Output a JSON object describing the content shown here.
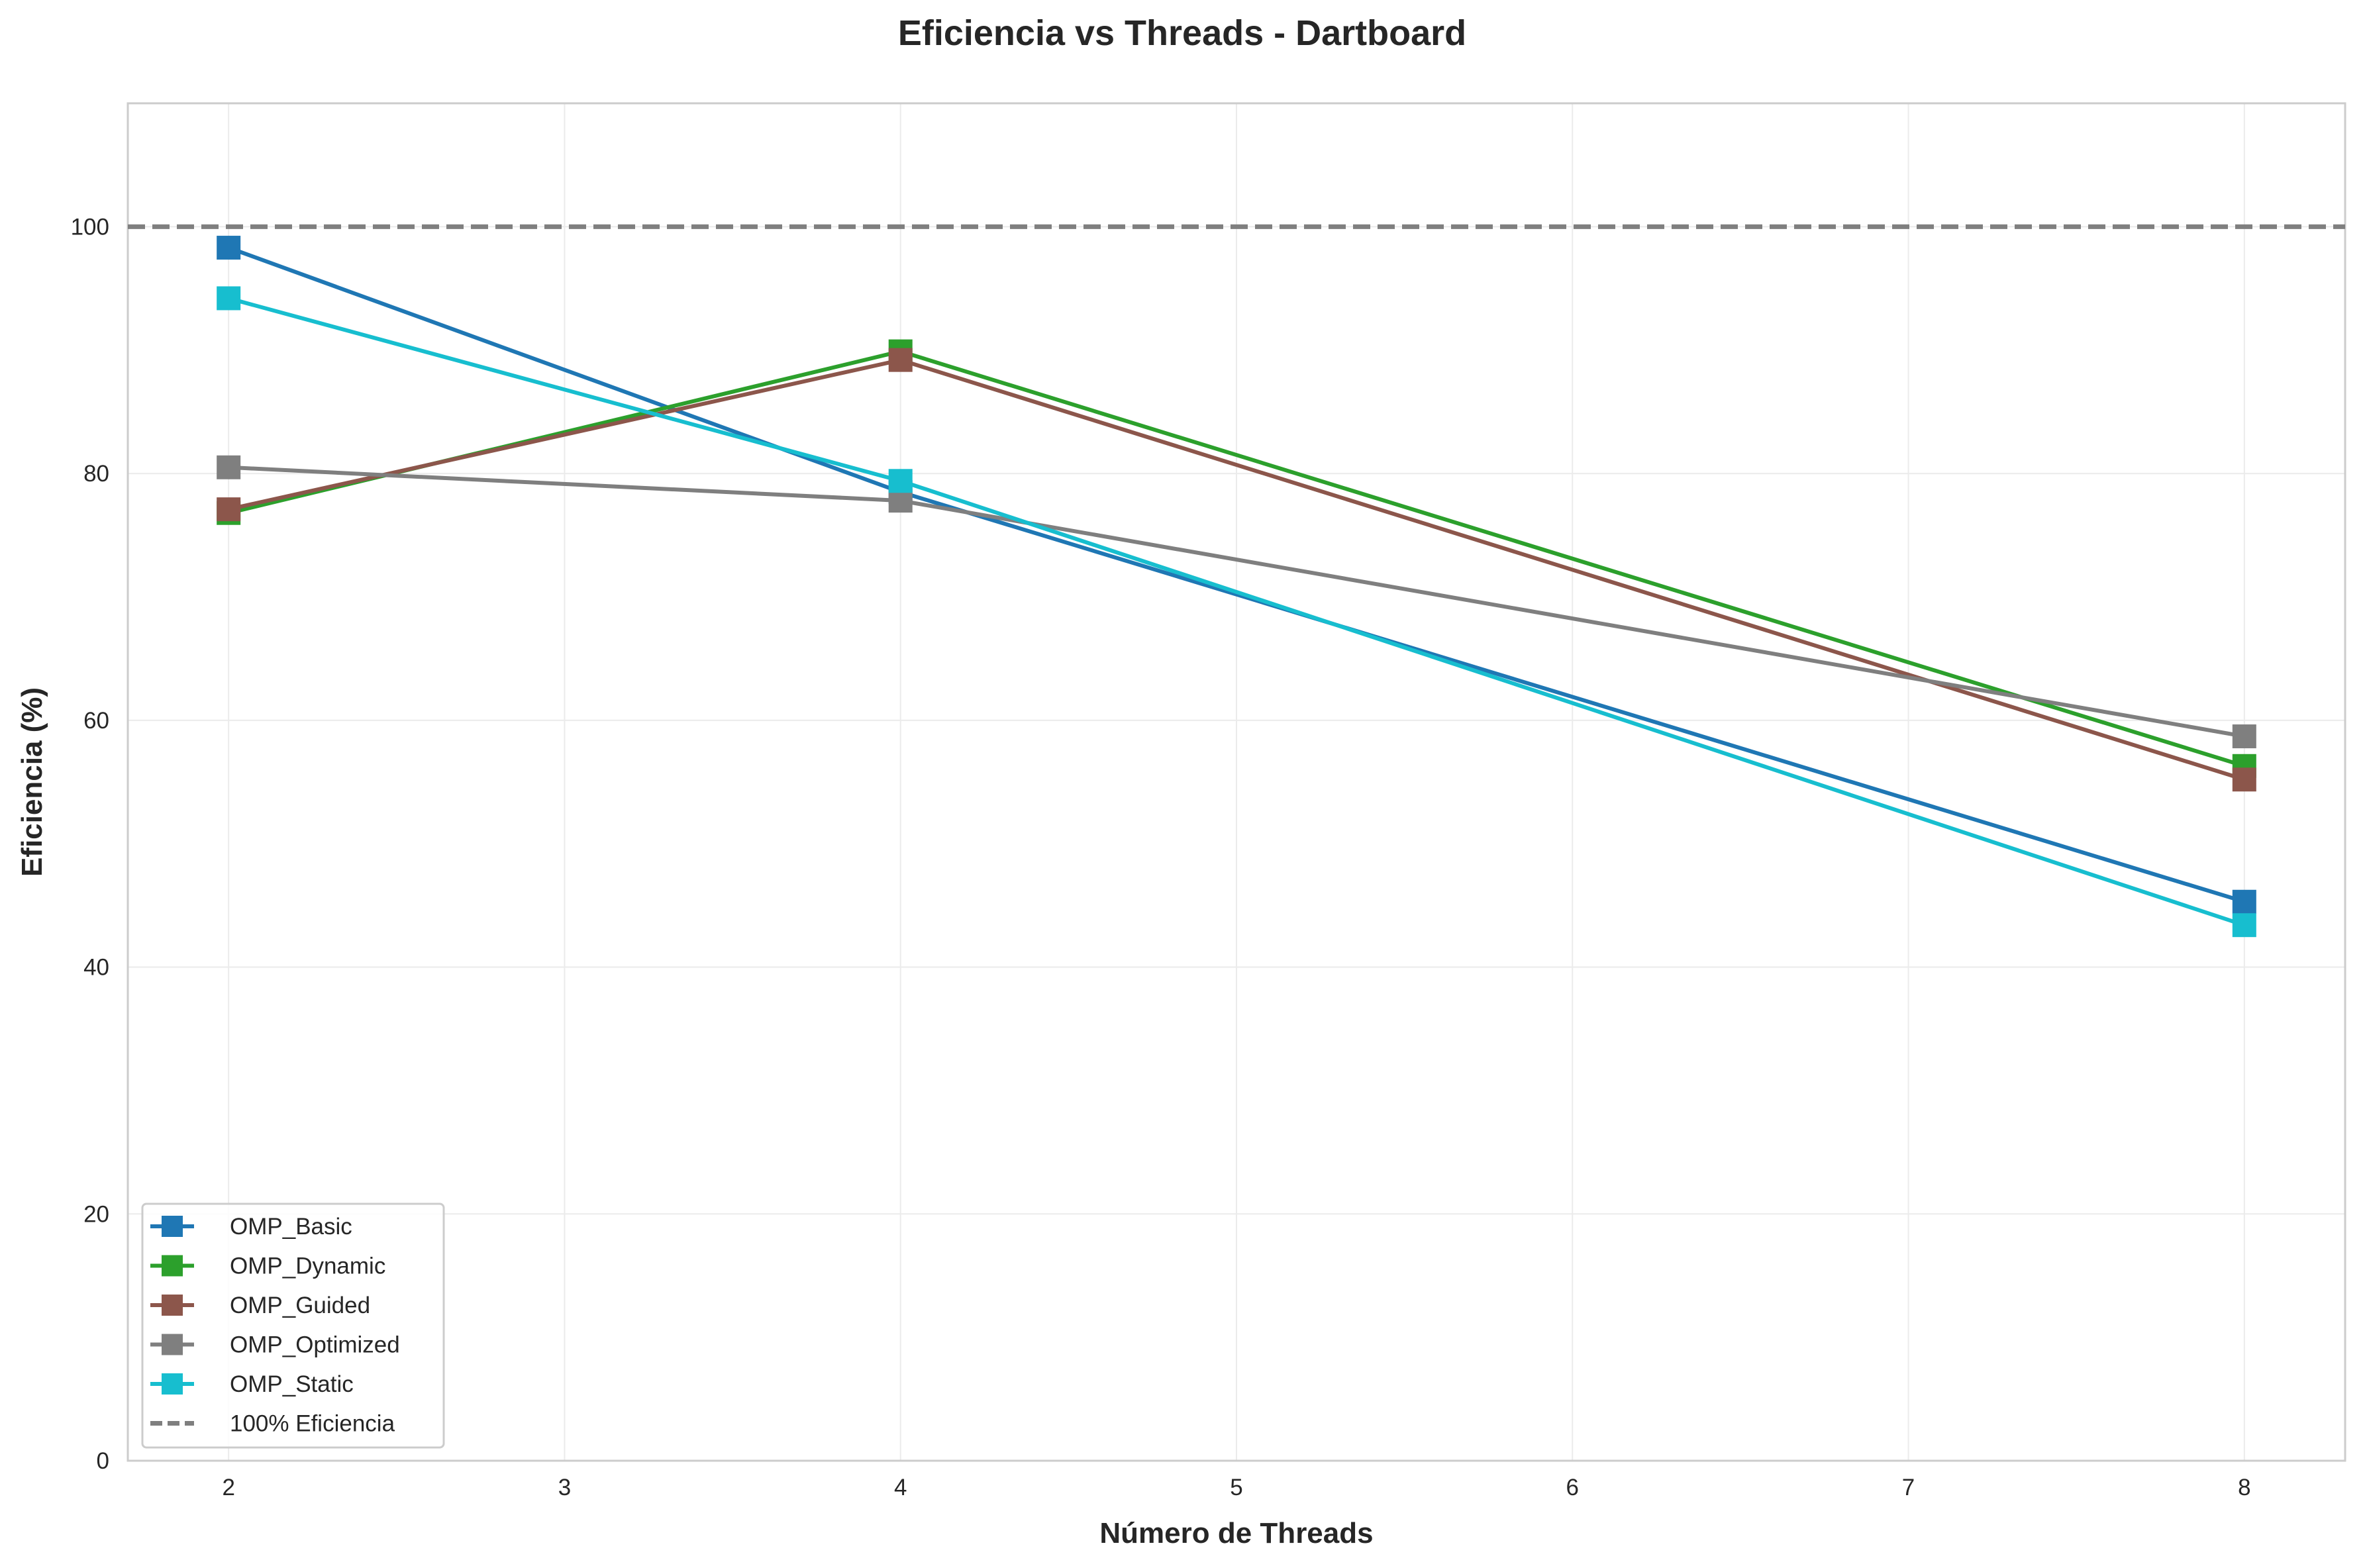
{
  "chart_data": {
    "type": "line",
    "title": "Eficiencia vs Threads - Dartboard",
    "xlabel": "Número de Threads",
    "ylabel": "Eficiencia (%)",
    "xlim": [
      1.7,
      8.3
    ],
    "ylim": [
      0,
      110
    ],
    "xticks": [
      2,
      3,
      4,
      5,
      6,
      7,
      8
    ],
    "yticks": [
      0,
      20,
      40,
      60,
      80,
      100
    ],
    "grid": true,
    "legend_position": "lower-left",
    "x": [
      2,
      4,
      8
    ],
    "series": [
      {
        "name": "OMP_Basic",
        "color": "#1f77b4",
        "marker": "square",
        "values": [
          98.3,
          78.5,
          45.3
        ]
      },
      {
        "name": "OMP_Dynamic",
        "color": "#2ca02c",
        "marker": "square",
        "values": [
          76.8,
          89.9,
          56.3
        ]
      },
      {
        "name": "OMP_Guided",
        "color": "#8c564b",
        "marker": "square",
        "values": [
          77.1,
          89.2,
          55.2
        ]
      },
      {
        "name": "OMP_Optimized",
        "color": "#7f7f7f",
        "marker": "square",
        "values": [
          80.5,
          77.8,
          58.7
        ]
      },
      {
        "name": "OMP_Static",
        "color": "#17becf",
        "marker": "square",
        "values": [
          94.2,
          79.4,
          43.4
        ]
      }
    ],
    "reference_line": {
      "name": "100% Eficiencia",
      "y": 100,
      "color": "#7f7f7f",
      "style": "dashed"
    }
  }
}
